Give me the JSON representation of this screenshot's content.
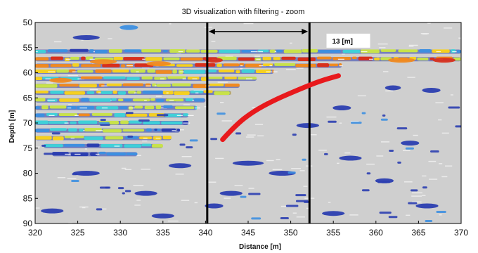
{
  "chart_data": {
    "type": "heatmap",
    "title": "3D visualization with filtering - zoom",
    "xlabel": "Distance [m]",
    "ylabel": "Depth [m]",
    "xlim": [
      320,
      370
    ],
    "ylim": [
      50,
      90
    ],
    "y_inverted": true,
    "xticks": [
      320,
      325,
      330,
      335,
      340,
      345,
      350,
      355,
      360,
      365,
      370
    ],
    "yticks": [
      50,
      55,
      60,
      65,
      70,
      75,
      80,
      85,
      90
    ],
    "grid": false,
    "legend": "none",
    "colormap": [
      "#2b3eb0",
      "#3d8fe0",
      "#3fd0d8",
      "#c8e24a",
      "#f5d020",
      "#f08a20",
      "#d8301c"
    ],
    "background_color": "#cfcfcf",
    "vertical_lines": [
      {
        "x": 340.2,
        "color": "#000000"
      },
      {
        "x": 352.2,
        "color": "#000000"
      }
    ],
    "dimension_arrow": {
      "x1": 340.2,
      "x2": 352.2,
      "y": 51.8,
      "label": "13 [m]"
    },
    "label_box": {
      "x": 354.2,
      "y": 53.9
    },
    "red_curve": {
      "color": "#e8191c",
      "points": [
        [
          342,
          73.3
        ],
        [
          343.5,
          70.5
        ],
        [
          345.5,
          67.8
        ],
        [
          348,
          65.5
        ],
        [
          351,
          63.3
        ],
        [
          353.5,
          61.6
        ],
        [
          355.6,
          60.6
        ]
      ]
    },
    "bands": [
      {
        "y": 55.8,
        "x0": 320,
        "x1": 370,
        "intensity": 0.35
      },
      {
        "y": 57.3,
        "x0": 320,
        "x1": 370,
        "intensity": 0.75
      },
      {
        "y": 58.6,
        "x0": 320,
        "x1": 356,
        "intensity": 0.8
      },
      {
        "y": 59.8,
        "x0": 320,
        "x1": 348,
        "intensity": 0.6
      },
      {
        "y": 61.2,
        "x0": 320,
        "x1": 346,
        "intensity": 0.55
      },
      {
        "y": 62.6,
        "x0": 320,
        "x1": 344,
        "intensity": 0.65
      },
      {
        "y": 64.0,
        "x0": 320,
        "x1": 343,
        "intensity": 0.45
      },
      {
        "y": 65.5,
        "x0": 320,
        "x1": 340,
        "intensity": 0.4
      },
      {
        "y": 67.0,
        "x0": 320,
        "x1": 339,
        "intensity": 0.35
      },
      {
        "y": 68.5,
        "x0": 320,
        "x1": 338,
        "intensity": 0.5
      },
      {
        "y": 70.0,
        "x0": 320,
        "x1": 338,
        "intensity": 0.3
      },
      {
        "y": 71.5,
        "x0": 320,
        "x1": 337,
        "intensity": 0.25
      },
      {
        "y": 73.0,
        "x0": 320,
        "x1": 336,
        "intensity": 0.45
      },
      {
        "y": 74.6,
        "x0": 321,
        "x1": 335,
        "intensity": 0.2
      },
      {
        "y": 76.2,
        "x0": 322,
        "x1": 332,
        "intensity": 0.1
      }
    ],
    "blobs": [
      {
        "x": 331,
        "y": 51,
        "w": 1.5,
        "i": 0.1
      },
      {
        "x": 326,
        "y": 53,
        "w": 2.5,
        "i": 0.05
      },
      {
        "x": 341,
        "y": 57.5,
        "w": 1.4,
        "i": 0.95
      },
      {
        "x": 334.5,
        "y": 58.2,
        "w": 2.2,
        "i": 0.9
      },
      {
        "x": 368,
        "y": 57.5,
        "w": 2.0,
        "i": 0.95
      },
      {
        "x": 363,
        "y": 57.5,
        "w": 2.5,
        "i": 0.8
      },
      {
        "x": 323,
        "y": 61.5,
        "w": 2.0,
        "i": 0.85
      },
      {
        "x": 328,
        "y": 57.8,
        "w": 2.5,
        "i": 0.85
      },
      {
        "x": 366.5,
        "y": 63.5,
        "w": 1.5,
        "i": 0.05
      },
      {
        "x": 362,
        "y": 63,
        "w": 1.2,
        "i": 0.0
      },
      {
        "x": 345,
        "y": 78,
        "w": 3.0,
        "i": 0.05
      },
      {
        "x": 349,
        "y": 80,
        "w": 2.5,
        "i": 0.0
      },
      {
        "x": 343,
        "y": 84,
        "w": 2.0,
        "i": 0.05
      },
      {
        "x": 341,
        "y": 86.5,
        "w": 1.5,
        "i": 0.0
      },
      {
        "x": 322,
        "y": 87.5,
        "w": 2.0,
        "i": 0.0
      },
      {
        "x": 333,
        "y": 84,
        "w": 2.0,
        "i": 0.05
      },
      {
        "x": 357,
        "y": 77,
        "w": 2.0,
        "i": 0.0
      },
      {
        "x": 361,
        "y": 81.5,
        "w": 1.5,
        "i": 0.05
      },
      {
        "x": 366,
        "y": 86.5,
        "w": 2.0,
        "i": 0.0
      },
      {
        "x": 335,
        "y": 88.5,
        "w": 2.0,
        "i": 0.0
      },
      {
        "x": 352,
        "y": 70.5,
        "w": 2.0,
        "i": 0.05
      },
      {
        "x": 356,
        "y": 67,
        "w": 1.5,
        "i": 0.0
      },
      {
        "x": 326,
        "y": 80,
        "w": 2.5,
        "i": 0.05
      },
      {
        "x": 337,
        "y": 78.5,
        "w": 2.0,
        "i": 0.0
      },
      {
        "x": 355,
        "y": 88,
        "w": 2.0,
        "i": 0.05
      },
      {
        "x": 364,
        "y": 74,
        "w": 1.5,
        "i": 0.05
      }
    ]
  }
}
